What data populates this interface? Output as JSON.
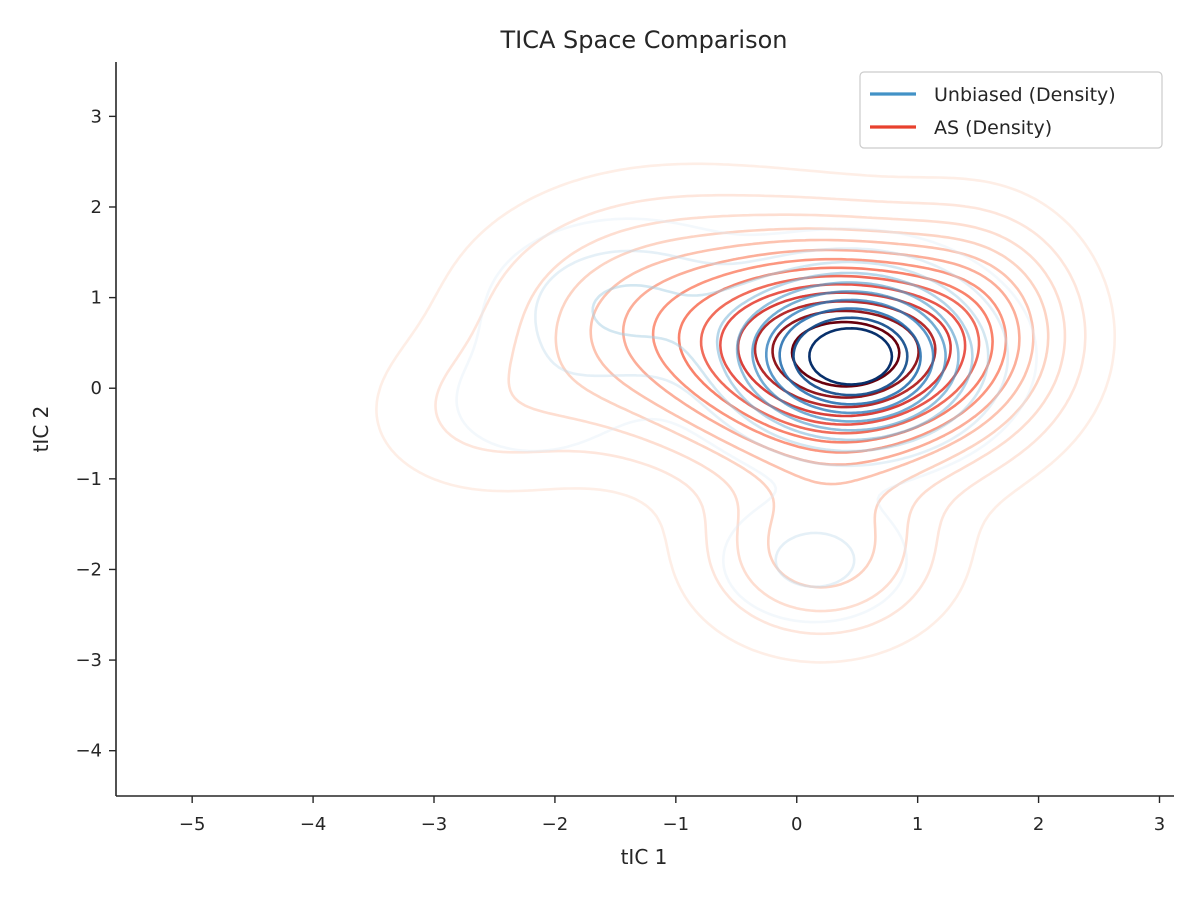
{
  "chart_data": {
    "type": "contour",
    "title": "TICA Space Comparison",
    "xlabel": "tIC 1",
    "ylabel": "tIC 2",
    "xlim": [
      -5.63,
      3.12
    ],
    "ylim": [
      -4.5,
      3.6
    ],
    "xticks": [
      -5,
      -4,
      -3,
      -2,
      -1,
      0,
      1,
      2,
      3
    ],
    "yticks": [
      -4,
      -3,
      -2,
      -1,
      0,
      1,
      2,
      3
    ],
    "xtick_labels": [
      "−5",
      "−4",
      "−3",
      "−2",
      "−1",
      "0",
      "1",
      "2",
      "3"
    ],
    "ytick_labels": [
      "−4",
      "−3",
      "−2",
      "−1",
      "0",
      "1",
      "2",
      "3"
    ],
    "grid": false,
    "legend_position": "top-right",
    "series": [
      {
        "name": "Unbiased (Density)",
        "color": "#4292c6",
        "colormap": "Blues",
        "levels": 10,
        "components": [
          {
            "cx": 0.45,
            "cy": 0.35,
            "sx": 0.6,
            "sy": 0.55,
            "w": 1.0
          },
          {
            "cx": -1.4,
            "cy": 0.9,
            "sx": 0.65,
            "sy": 0.55,
            "w": 0.18
          },
          {
            "cx": 0.15,
            "cy": -1.9,
            "sx": 0.5,
            "sy": 0.45,
            "w": 0.12
          },
          {
            "cx": -2.2,
            "cy": -0.2,
            "sx": 0.6,
            "sy": 0.5,
            "w": 0.06
          }
        ]
      },
      {
        "name": "AS (Density)",
        "color": "#e8412d",
        "colormap": "Reds",
        "levels": 14,
        "components": [
          {
            "cx": 0.45,
            "cy": 0.35,
            "sx": 0.75,
            "sy": 0.7,
            "w": 1.0
          },
          {
            "cx": -1.0,
            "cy": 0.7,
            "sx": 0.9,
            "sy": 0.8,
            "w": 0.3
          },
          {
            "cx": 0.2,
            "cy": -1.8,
            "sx": 0.6,
            "sy": 0.6,
            "w": 0.22
          },
          {
            "cx": -2.6,
            "cy": -0.3,
            "sx": 0.6,
            "sy": 0.55,
            "w": 0.07
          },
          {
            "cx": 1.5,
            "cy": 0.8,
            "sx": 0.5,
            "sy": 0.7,
            "w": 0.18
          }
        ]
      }
    ]
  }
}
